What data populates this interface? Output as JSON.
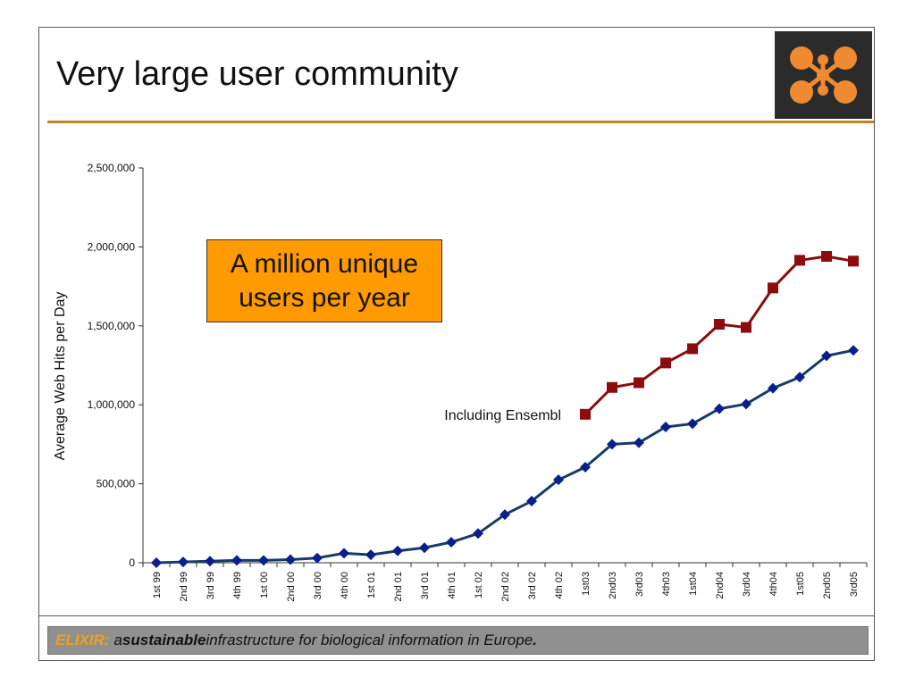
{
  "slide": {
    "title": "Very large user community",
    "callout_line1": "A million unique",
    "callout_line2": "users per year",
    "footer": {
      "brand": "ELIXIR:",
      "pre": "a ",
      "strong": "sustainable",
      "post": " infrastructure for biological information in Europe",
      "end": "."
    }
  },
  "colors": {
    "rule": "#c7821e",
    "callout": "#ff9a00",
    "series_blue": "#173d66",
    "marker_blue": "#0b1f8c",
    "series_red": "#8a0c0c",
    "logo_bg": "#2b2b2b",
    "logo_dot": "#f08a30"
  },
  "chart_data": {
    "type": "line",
    "title": "",
    "xlabel": "",
    "ylabel": "Average Web Hits per Day",
    "ylim": [
      0,
      2500000
    ],
    "yticks": [
      0,
      500000,
      1000000,
      1500000,
      2000000,
      2500000
    ],
    "ytick_labels": [
      "0",
      "500,000",
      "1,000,000",
      "1,500,000",
      "2,000,000",
      "2,500,000"
    ],
    "grid": false,
    "categories": [
      "1st 99",
      "2nd 99",
      "3rd 99",
      "4th 99",
      "1st 00",
      "2nd 00",
      "3rd 00",
      "4th 00",
      "1st 01",
      "2nd 01",
      "3rd 01",
      "4th 01",
      "1st 02",
      "2nd 02",
      "3rd 02",
      "4th 02",
      "1st03",
      "2nd03",
      "3rd03",
      "4th03",
      "1st04",
      "2nd04",
      "3rd04",
      "4th04",
      "1st05",
      "2nd05",
      "3rd05"
    ],
    "series": [
      {
        "values": [
          0,
          5000,
          10000,
          15000,
          15000,
          20000,
          30000,
          60000,
          50000,
          75000,
          95000,
          130000,
          185000,
          305000,
          390000,
          525000,
          605000,
          750000,
          760000,
          860000,
          880000,
          975000,
          1005000,
          1105000,
          1175000,
          1310000,
          1345000
        ],
        "marker": "diamond"
      },
      {
        "name": "Including Ensembl",
        "values": [
          null,
          null,
          null,
          null,
          null,
          null,
          null,
          null,
          null,
          null,
          null,
          null,
          null,
          null,
          null,
          null,
          940000,
          1110000,
          1140000,
          1265000,
          1355000,
          1510000,
          1490000,
          1740000,
          1915000,
          1940000,
          1910000
        ],
        "marker": "square"
      }
    ]
  }
}
